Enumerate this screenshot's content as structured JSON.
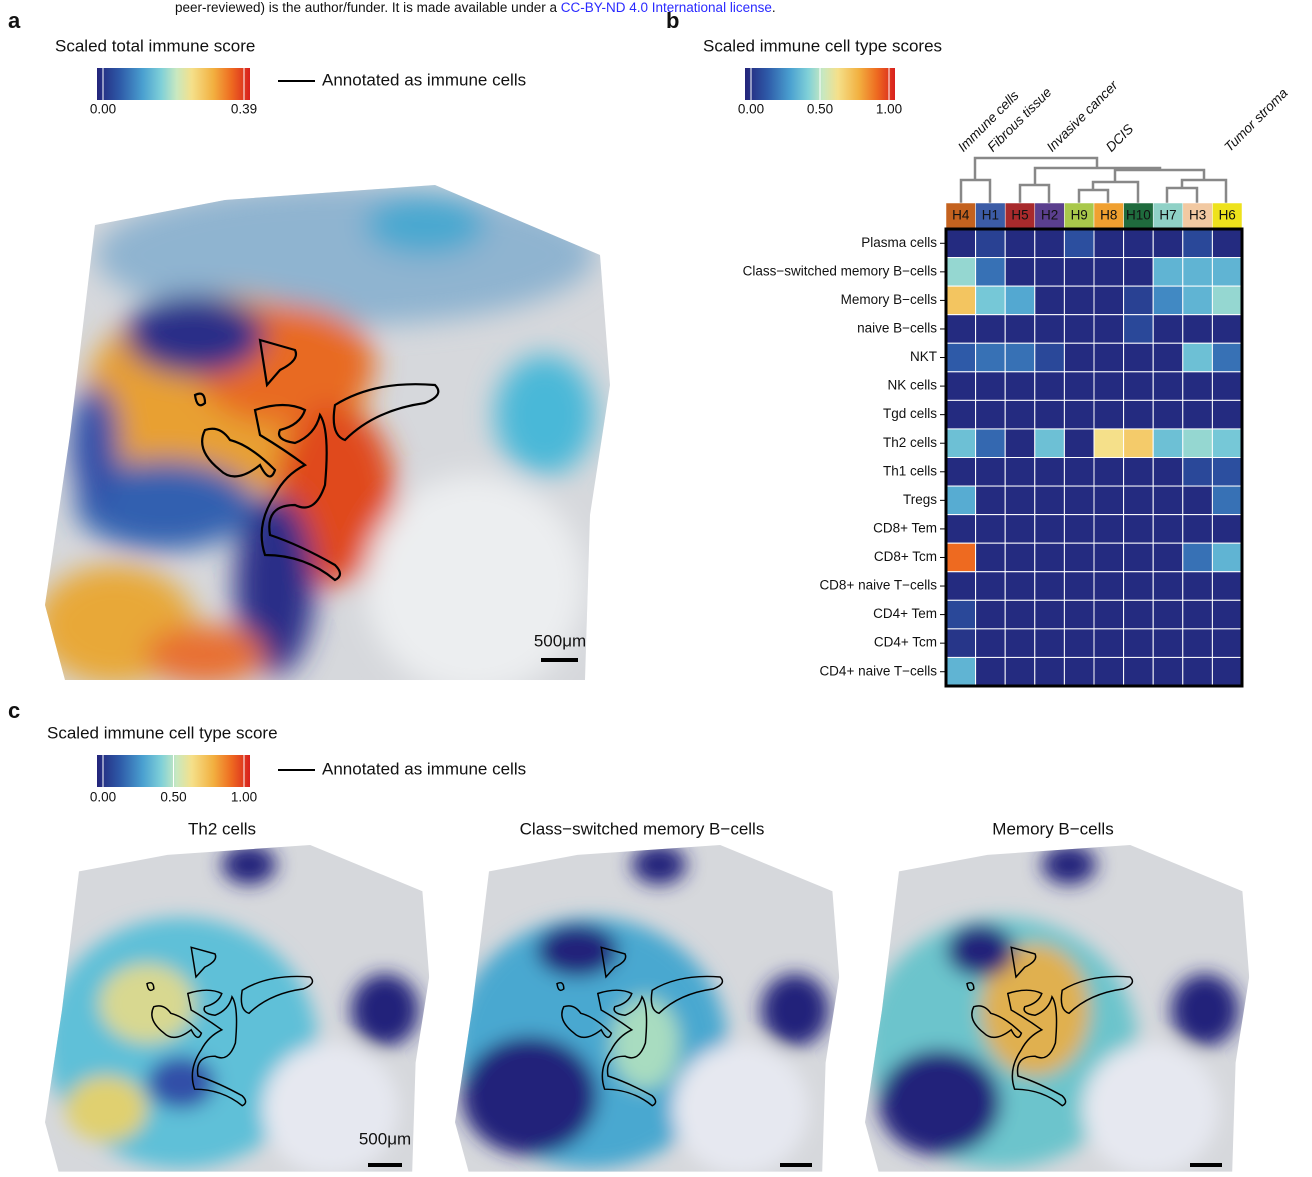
{
  "header": {
    "text": "peer-reviewed) is the author/funder. It is made available under a ",
    "link": "CC-BY-ND 4.0 International license",
    "end": "."
  },
  "panel_a": {
    "label": "a",
    "title": "Scaled total immune score",
    "colorbar_ticks": [
      {
        "value": 0,
        "label": "0.00"
      },
      {
        "value": 0.39,
        "label": "0.39"
      }
    ],
    "legend": "Annotated as immune cells",
    "scale_bar": "500μm"
  },
  "panel_b": {
    "label": "b",
    "title": "Scaled immune cell type scores",
    "colorbar_ticks": [
      {
        "value": 0,
        "label": "0.00"
      },
      {
        "value": 0.5,
        "label": "0.50"
      },
      {
        "value": 1,
        "label": "1.00"
      }
    ],
    "groups": [
      "Immune cells",
      "Fibrous tissue",
      "Invasive cancer",
      "DCIS",
      "Tumor stroma"
    ],
    "columns": [
      {
        "label": "H4",
        "color": "#c4621f"
      },
      {
        "label": "H1",
        "color": "#3c5ca6"
      },
      {
        "label": "H5",
        "color": "#a82a2c"
      },
      {
        "label": "H2",
        "color": "#5b3f8e"
      },
      {
        "label": "H9",
        "color": "#a9c84b"
      },
      {
        "label": "H8",
        "color": "#f0a030"
      },
      {
        "label": "H10",
        "color": "#1f6b3d"
      },
      {
        "label": "H7",
        "color": "#8fd1c6"
      },
      {
        "label": "H3",
        "color": "#f2c9a2"
      },
      {
        "label": "H6",
        "color": "#eee21c"
      }
    ],
    "rows": [
      "Plasma cells",
      "Class−switched memory B−cells",
      "Memory B−cells",
      "naive B−cells",
      "NKT",
      "NK cells",
      "Tgd cells",
      "Th2 cells",
      "Th1 cells",
      "Tregs",
      "CD8+ Tem",
      "CD8+ Tcm",
      "CD8+ naive T−cells",
      "CD4+ Tem",
      "CD4+ Tcm",
      "CD4+ naive T−cells"
    ],
    "values": [
      [
        0.02,
        0.08,
        0.02,
        0.02,
        0.12,
        0.02,
        0.02,
        0.02,
        0.1,
        0.02
      ],
      [
        0.45,
        0.2,
        0.02,
        0.02,
        0.02,
        0.02,
        0.02,
        0.35,
        0.35,
        0.35
      ],
      [
        0.7,
        0.4,
        0.32,
        0.02,
        0.02,
        0.02,
        0.08,
        0.25,
        0.35,
        0.45
      ],
      [
        0.02,
        0.02,
        0.02,
        0.02,
        0.02,
        0.02,
        0.1,
        0.02,
        0.02,
        0.02
      ],
      [
        0.15,
        0.2,
        0.2,
        0.1,
        0.02,
        0.02,
        0.02,
        0.02,
        0.38,
        0.2
      ],
      [
        0.02,
        0.02,
        0.02,
        0.02,
        0.02,
        0.02,
        0.02,
        0.02,
        0.02,
        0.02
      ],
      [
        0.02,
        0.02,
        0.02,
        0.02,
        0.02,
        0.02,
        0.02,
        0.02,
        0.02,
        0.02
      ],
      [
        0.38,
        0.18,
        0.02,
        0.38,
        0.02,
        0.62,
        0.68,
        0.38,
        0.45,
        0.4
      ],
      [
        0.02,
        0.02,
        0.02,
        0.02,
        0.02,
        0.02,
        0.02,
        0.02,
        0.1,
        0.12
      ],
      [
        0.33,
        0.02,
        0.02,
        0.02,
        0.02,
        0.02,
        0.02,
        0.02,
        0.02,
        0.2
      ],
      [
        0.02,
        0.02,
        0.02,
        0.02,
        0.02,
        0.02,
        0.02,
        0.02,
        0.02,
        0.02
      ],
      [
        0.88,
        0.02,
        0.02,
        0.02,
        0.02,
        0.02,
        0.02,
        0.02,
        0.2,
        0.35
      ],
      [
        0.02,
        0.02,
        0.02,
        0.02,
        0.02,
        0.02,
        0.02,
        0.02,
        0.02,
        0.02
      ],
      [
        0.1,
        0.02,
        0.02,
        0.02,
        0.02,
        0.02,
        0.02,
        0.02,
        0.02,
        0.02
      ],
      [
        0.05,
        0.02,
        0.02,
        0.02,
        0.02,
        0.02,
        0.02,
        0.02,
        0.02,
        0.02
      ],
      [
        0.35,
        0.02,
        0.02,
        0.02,
        0.02,
        0.02,
        0.02,
        0.02,
        0.02,
        0.02
      ]
    ]
  },
  "panel_c": {
    "label": "c",
    "title": "Scaled immune cell type score",
    "colorbar_ticks": [
      {
        "value": 0,
        "label": "0.00"
      },
      {
        "value": 0.5,
        "label": "0.50"
      },
      {
        "value": 1,
        "label": "1.00"
      }
    ],
    "legend": "Annotated as immune cells",
    "subpanels": [
      "Th2 cells",
      "Class−switched memory B−cells",
      "Memory B−cells"
    ],
    "scale_bar": "500μm"
  }
}
